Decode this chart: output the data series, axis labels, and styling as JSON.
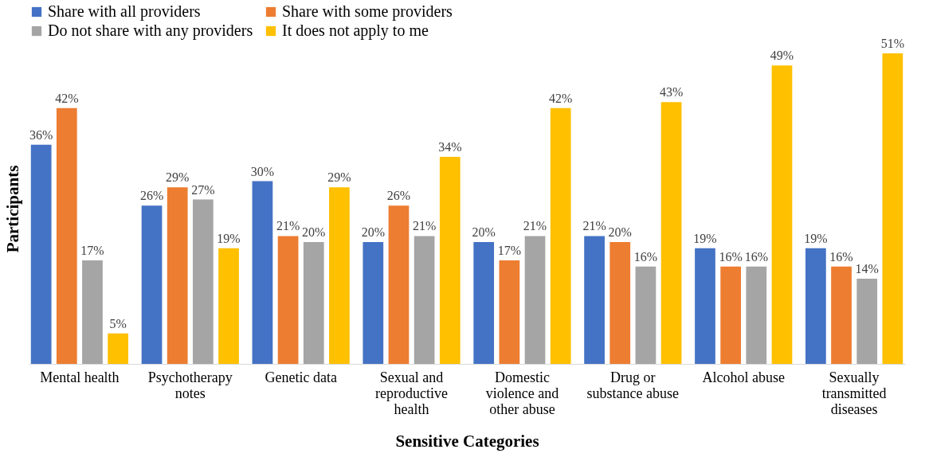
{
  "chart_data": {
    "type": "bar",
    "xlabel": "Sensitive Categories",
    "ylabel": "Participants",
    "categories": [
      "Mental health",
      "Psychotherapy notes",
      "Genetic data",
      "Sexual and reproductive health",
      "Domestic violence and other abuse",
      "Drug or substance abuse",
      "Alcohol abuse",
      "Sexually transmitted diseases"
    ],
    "series": [
      {
        "name": "Share with all providers",
        "color": "#4472c4",
        "values": [
          36,
          26,
          30,
          20,
          20,
          21,
          19,
          19
        ],
        "value_labels": [
          "36%",
          "26%",
          "30%",
          "20%",
          "20%",
          "21%",
          "19%",
          "19%"
        ]
      },
      {
        "name": "Share with some providers",
        "color": "#ed7d31",
        "values": [
          42,
          29,
          21,
          26,
          17,
          20,
          16,
          16
        ],
        "value_labels": [
          "42%",
          "29%",
          "21%",
          "26%",
          "17%",
          "20%",
          "16%",
          "16%"
        ]
      },
      {
        "name": "Do not share with any providers",
        "color": "#a5a5a5",
        "values": [
          17,
          27,
          20,
          21,
          21,
          16,
          16,
          14
        ],
        "value_labels": [
          "17%",
          "27%",
          "20%",
          "21%",
          "21%",
          "16%",
          "16%",
          "14%"
        ]
      },
      {
        "name": "It does not apply to me",
        "color": "#ffc000",
        "values": [
          5,
          19,
          29,
          34,
          42,
          43,
          49,
          51
        ],
        "value_labels": [
          "5%",
          "19%",
          "29%",
          "34%",
          "42%",
          "43%",
          "49%",
          "51%"
        ]
      }
    ],
    "legend": "top",
    "tick_labels": "x",
    "grid": false
  }
}
